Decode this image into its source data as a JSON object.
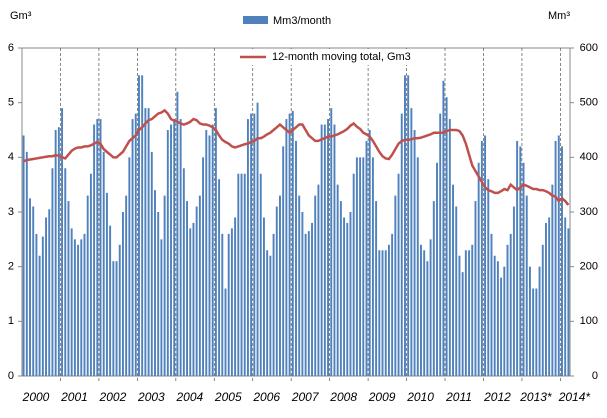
{
  "chart_data": {
    "type": "bar-line",
    "y_label": "Gm³",
    "y2_label": "Mm³",
    "categories": [
      "2000",
      null,
      null,
      null,
      null,
      null,
      null,
      null,
      null,
      null,
      null,
      null,
      "2001",
      null,
      null,
      null,
      null,
      null,
      null,
      null,
      null,
      null,
      null,
      null,
      "2002",
      null,
      null,
      null,
      null,
      null,
      null,
      null,
      null,
      null,
      null,
      null,
      "2003",
      null,
      null,
      null,
      null,
      null,
      null,
      null,
      null,
      null,
      null,
      null,
      "2004",
      null,
      null,
      null,
      null,
      null,
      null,
      null,
      null,
      null,
      null,
      null,
      "2005",
      null,
      null,
      null,
      null,
      null,
      null,
      null,
      null,
      null,
      null,
      null,
      "2006",
      null,
      null,
      null,
      null,
      null,
      null,
      null,
      null,
      null,
      null,
      null,
      "2007",
      null,
      null,
      null,
      null,
      null,
      null,
      null,
      null,
      null,
      null,
      null,
      "2008",
      null,
      null,
      null,
      null,
      null,
      null,
      null,
      null,
      null,
      null,
      null,
      "2009",
      null,
      null,
      null,
      null,
      null,
      null,
      null,
      null,
      null,
      null,
      null,
      "2010",
      null,
      null,
      null,
      null,
      null,
      null,
      null,
      null,
      null,
      null,
      null,
      "2011",
      null,
      null,
      null,
      null,
      null,
      null,
      null,
      null,
      null,
      null,
      null,
      "2012",
      null,
      null,
      null,
      null,
      null,
      null,
      null,
      null,
      null,
      null,
      null,
      "2013*",
      null,
      null,
      null,
      null,
      null,
      null,
      null,
      null,
      null,
      null,
      null,
      "2014*",
      null,
      null
    ],
    "series": [
      {
        "name": "Mm3/month",
        "color": "#4f81bd",
        "axis": "y2",
        "values": [
          440,
          410,
          325,
          310,
          260,
          220,
          255,
          290,
          305,
          380,
          450,
          455,
          490,
          380,
          320,
          270,
          250,
          240,
          250,
          260,
          330,
          370,
          460,
          470,
          470,
          410,
          335,
          275,
          210,
          210,
          240,
          300,
          330,
          400,
          470,
          480,
          550,
          550,
          490,
          490,
          410,
          340,
          300,
          250,
          330,
          450,
          460,
          470,
          520,
          470,
          380,
          320,
          270,
          280,
          310,
          330,
          400,
          450,
          440,
          460,
          490,
          360,
          260,
          160,
          260,
          270,
          290,
          370,
          370,
          370,
          470,
          480,
          480,
          500,
          370,
          290,
          230,
          220,
          260,
          310,
          330,
          420,
          470,
          480,
          485,
          430,
          330,
          300,
          260,
          265,
          280,
          330,
          350,
          460,
          460,
          470,
          490,
          460,
          350,
          320,
          290,
          280,
          300,
          370,
          400,
          400,
          400,
          430,
          450,
          400,
          320,
          230,
          230,
          230,
          240,
          260,
          330,
          370,
          480,
          550,
          550,
          490,
          450,
          400,
          240,
          230,
          210,
          250,
          320,
          390,
          480,
          540,
          510,
          470,
          350,
          310,
          220,
          190,
          230,
          230,
          240,
          320,
          390,
          430,
          440,
          360,
          260,
          220,
          210,
          180,
          200,
          240,
          260,
          310,
          430,
          420,
          390,
          330,
          200,
          160,
          160,
          200,
          240,
          280,
          290,
          350,
          430,
          440,
          420,
          290,
          270
        ]
      },
      {
        "name": "12-month moving total,  Gm3",
        "color": "#c0504d",
        "values": [
          3.93,
          3.95,
          3.96,
          3.97,
          3.98,
          3.99,
          4.0,
          4.01,
          4.02,
          4.02,
          4.04,
          4.03,
          4.0,
          3.98,
          4.05,
          4.12,
          4.16,
          4.18,
          4.18,
          4.2,
          4.2,
          4.22,
          4.25,
          4.28,
          4.25,
          4.15,
          4.1,
          4.05,
          4.0,
          4.0,
          4.05,
          4.1,
          4.2,
          4.3,
          4.35,
          4.4,
          4.5,
          4.55,
          4.62,
          4.68,
          4.7,
          4.75,
          4.8,
          4.82,
          4.86,
          4.8,
          4.7,
          4.67,
          4.65,
          4.62,
          4.6,
          4.62,
          4.65,
          4.7,
          4.68,
          4.62,
          4.6,
          4.6,
          4.58,
          4.55,
          4.5,
          4.4,
          4.32,
          4.28,
          4.25,
          4.2,
          4.18,
          4.2,
          4.22,
          4.24,
          4.25,
          4.28,
          4.3,
          4.35,
          4.35,
          4.38,
          4.42,
          4.45,
          4.5,
          4.55,
          4.6,
          4.55,
          4.5,
          4.45,
          4.5,
          4.55,
          4.6,
          4.6,
          4.5,
          4.4,
          4.35,
          4.3,
          4.3,
          4.33,
          4.35,
          4.38,
          4.38,
          4.4,
          4.42,
          4.45,
          4.48,
          4.52,
          4.58,
          4.62,
          4.56,
          4.52,
          4.45,
          4.42,
          4.38,
          4.3,
          4.2,
          4.1,
          4.02,
          3.98,
          3.97,
          4.05,
          4.15,
          4.25,
          4.3,
          4.32,
          4.32,
          4.33,
          4.35,
          4.35,
          4.36,
          4.38,
          4.4,
          4.42,
          4.45,
          4.45,
          4.45,
          4.45,
          4.48,
          4.5,
          4.5,
          4.5,
          4.48,
          4.4,
          4.25,
          4.05,
          3.85,
          3.75,
          3.65,
          3.55,
          3.45,
          3.4,
          3.38,
          3.35,
          3.35,
          3.38,
          3.42,
          3.4,
          3.5,
          3.45,
          3.4,
          3.45,
          3.5,
          3.48,
          3.45,
          3.42,
          3.42,
          3.4,
          3.4,
          3.38,
          3.35,
          3.3,
          3.28,
          3.2,
          3.25,
          3.2,
          3.13
        ]
      }
    ],
    "ylim": [
      0,
      6
    ],
    "yticks": [
      0,
      1,
      2,
      3,
      4,
      5,
      6
    ],
    "y2lim": [
      0,
      600
    ],
    "y2ticks": [
      0,
      100,
      200,
      300,
      400,
      500,
      600
    ]
  }
}
